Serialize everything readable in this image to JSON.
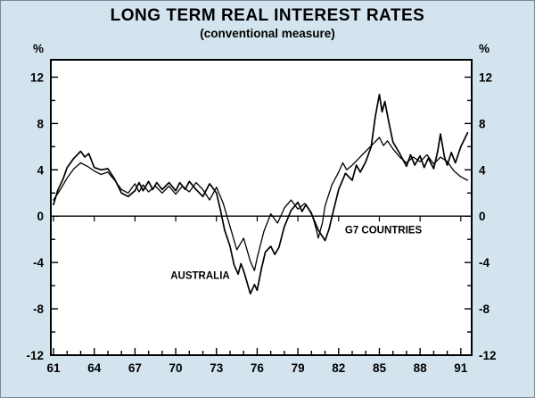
{
  "colors": {
    "background": "#d3e4ee",
    "plot_background": "#ffffff",
    "line": "#000000",
    "text": "#000000"
  },
  "chart_data": {
    "type": "line",
    "title": "LONG TERM REAL INTEREST RATES",
    "subtitle": "(conventional measure)",
    "y_unit": "%",
    "ylim": [
      -12,
      12
    ],
    "y_tick_labels": [
      12,
      8,
      4,
      0,
      -4,
      -8,
      -12
    ],
    "y_tick_minor_step": 2,
    "x_tick_labels": [
      "61",
      "64",
      "67",
      "70",
      "73",
      "76",
      "79",
      "82",
      "85",
      "88",
      "91"
    ],
    "x_tick_years": [
      1961,
      1964,
      1967,
      1970,
      1973,
      1976,
      1979,
      1982,
      1985,
      1988,
      1991
    ],
    "x_minor_tick_every_year": true,
    "grid": false,
    "legend_position": "inline-annotations",
    "annotations": [
      {
        "text": "AUSTRALIA",
        "x": 1971.8,
        "y": -5.4
      },
      {
        "text": "G7 COUNTRIES",
        "x": 1985.3,
        "y": -1.5
      }
    ],
    "series": [
      {
        "name": "AUSTRALIA",
        "points": [
          [
            1961.0,
            1.0
          ],
          [
            1961.3,
            2.2
          ],
          [
            1961.7,
            3.2
          ],
          [
            1962.0,
            4.2
          ],
          [
            1962.5,
            5.0
          ],
          [
            1963.0,
            5.6
          ],
          [
            1963.3,
            5.1
          ],
          [
            1963.6,
            5.4
          ],
          [
            1964.0,
            4.2
          ],
          [
            1964.5,
            4.0
          ],
          [
            1965.0,
            4.1
          ],
          [
            1965.5,
            3.2
          ],
          [
            1966.0,
            2.0
          ],
          [
            1966.5,
            1.7
          ],
          [
            1967.0,
            2.2
          ],
          [
            1967.3,
            2.9
          ],
          [
            1967.6,
            2.2
          ],
          [
            1968.0,
            3.0
          ],
          [
            1968.3,
            2.3
          ],
          [
            1968.6,
            2.9
          ],
          [
            1969.0,
            2.3
          ],
          [
            1969.5,
            2.9
          ],
          [
            1970.0,
            2.2
          ],
          [
            1970.3,
            2.9
          ],
          [
            1970.7,
            2.3
          ],
          [
            1971.0,
            3.0
          ],
          [
            1971.5,
            2.3
          ],
          [
            1972.0,
            1.7
          ],
          [
            1972.5,
            2.8
          ],
          [
            1973.0,
            2.0
          ],
          [
            1973.3,
            0.5
          ],
          [
            1973.6,
            -1.2
          ],
          [
            1974.0,
            -2.6
          ],
          [
            1974.3,
            -4.2
          ],
          [
            1974.6,
            -5.0
          ],
          [
            1974.8,
            -4.1
          ],
          [
            1975.0,
            -4.7
          ],
          [
            1975.5,
            -6.7
          ],
          [
            1975.8,
            -5.9
          ],
          [
            1976.0,
            -6.4
          ],
          [
            1976.3,
            -4.6
          ],
          [
            1976.6,
            -3.1
          ],
          [
            1977.0,
            -2.6
          ],
          [
            1977.3,
            -3.3
          ],
          [
            1977.6,
            -2.7
          ],
          [
            1978.0,
            -0.9
          ],
          [
            1978.5,
            0.5
          ],
          [
            1979.0,
            1.2
          ],
          [
            1979.3,
            0.4
          ],
          [
            1979.6,
            1.0
          ],
          [
            1980.0,
            0.2
          ],
          [
            1980.5,
            -1.2
          ],
          [
            1981.0,
            -2.1
          ],
          [
            1981.3,
            -1.1
          ],
          [
            1981.6,
            0.4
          ],
          [
            1982.0,
            2.3
          ],
          [
            1982.5,
            3.7
          ],
          [
            1983.0,
            3.1
          ],
          [
            1983.3,
            4.4
          ],
          [
            1983.6,
            3.8
          ],
          [
            1984.0,
            4.7
          ],
          [
            1984.4,
            6.0
          ],
          [
            1984.7,
            8.6
          ],
          [
            1985.0,
            10.5
          ],
          [
            1985.2,
            9.0
          ],
          [
            1985.4,
            9.9
          ],
          [
            1985.7,
            8.1
          ],
          [
            1986.0,
            6.4
          ],
          [
            1986.5,
            5.4
          ],
          [
            1987.0,
            4.3
          ],
          [
            1987.3,
            5.3
          ],
          [
            1987.6,
            4.4
          ],
          [
            1988.0,
            5.2
          ],
          [
            1988.3,
            4.2
          ],
          [
            1988.6,
            5.0
          ],
          [
            1989.0,
            4.1
          ],
          [
            1989.3,
            5.6
          ],
          [
            1989.5,
            7.1
          ],
          [
            1989.8,
            5.1
          ],
          [
            1990.0,
            4.4
          ],
          [
            1990.3,
            5.5
          ],
          [
            1990.6,
            4.6
          ],
          [
            1991.0,
            6.0
          ],
          [
            1991.5,
            7.2
          ]
        ]
      },
      {
        "name": "G7 COUNTRIES",
        "points": [
          [
            1961.0,
            1.4
          ],
          [
            1961.5,
            2.3
          ],
          [
            1962.0,
            3.3
          ],
          [
            1962.5,
            4.1
          ],
          [
            1963.0,
            4.6
          ],
          [
            1963.5,
            4.3
          ],
          [
            1964.0,
            3.9
          ],
          [
            1964.5,
            3.6
          ],
          [
            1965.0,
            3.8
          ],
          [
            1965.5,
            3.1
          ],
          [
            1966.0,
            2.3
          ],
          [
            1966.5,
            2.0
          ],
          [
            1967.0,
            2.8
          ],
          [
            1967.3,
            2.1
          ],
          [
            1967.6,
            2.7
          ],
          [
            1968.0,
            2.1
          ],
          [
            1968.5,
            2.6
          ],
          [
            1969.0,
            2.0
          ],
          [
            1969.5,
            2.6
          ],
          [
            1970.0,
            1.9
          ],
          [
            1970.5,
            2.6
          ],
          [
            1971.0,
            2.1
          ],
          [
            1971.5,
            2.9
          ],
          [
            1972.0,
            2.3
          ],
          [
            1972.5,
            1.4
          ],
          [
            1973.0,
            2.5
          ],
          [
            1973.5,
            1.1
          ],
          [
            1974.0,
            -0.9
          ],
          [
            1974.5,
            -2.9
          ],
          [
            1975.0,
            -1.9
          ],
          [
            1975.5,
            -3.9
          ],
          [
            1975.8,
            -4.7
          ],
          [
            1976.0,
            -3.6
          ],
          [
            1976.5,
            -1.3
          ],
          [
            1977.0,
            0.2
          ],
          [
            1977.5,
            -0.6
          ],
          [
            1978.0,
            0.7
          ],
          [
            1978.5,
            1.4
          ],
          [
            1979.0,
            0.6
          ],
          [
            1979.5,
            1.1
          ],
          [
            1980.0,
            0.3
          ],
          [
            1980.3,
            -0.9
          ],
          [
            1980.5,
            -1.9
          ],
          [
            1980.8,
            -0.6
          ],
          [
            1981.0,
            0.9
          ],
          [
            1981.5,
            2.7
          ],
          [
            1982.0,
            3.8
          ],
          [
            1982.3,
            4.6
          ],
          [
            1982.6,
            4.0
          ],
          [
            1983.0,
            4.4
          ],
          [
            1983.5,
            5.0
          ],
          [
            1984.0,
            5.6
          ],
          [
            1984.5,
            6.2
          ],
          [
            1985.0,
            6.8
          ],
          [
            1985.3,
            6.1
          ],
          [
            1985.6,
            6.5
          ],
          [
            1986.0,
            5.8
          ],
          [
            1986.5,
            5.1
          ],
          [
            1987.0,
            4.6
          ],
          [
            1987.5,
            5.1
          ],
          [
            1988.0,
            4.7
          ],
          [
            1988.5,
            5.3
          ],
          [
            1989.0,
            4.5
          ],
          [
            1989.5,
            5.1
          ],
          [
            1990.0,
            4.7
          ],
          [
            1990.5,
            3.9
          ],
          [
            1991.0,
            3.4
          ],
          [
            1991.5,
            3.1
          ]
        ]
      }
    ]
  }
}
